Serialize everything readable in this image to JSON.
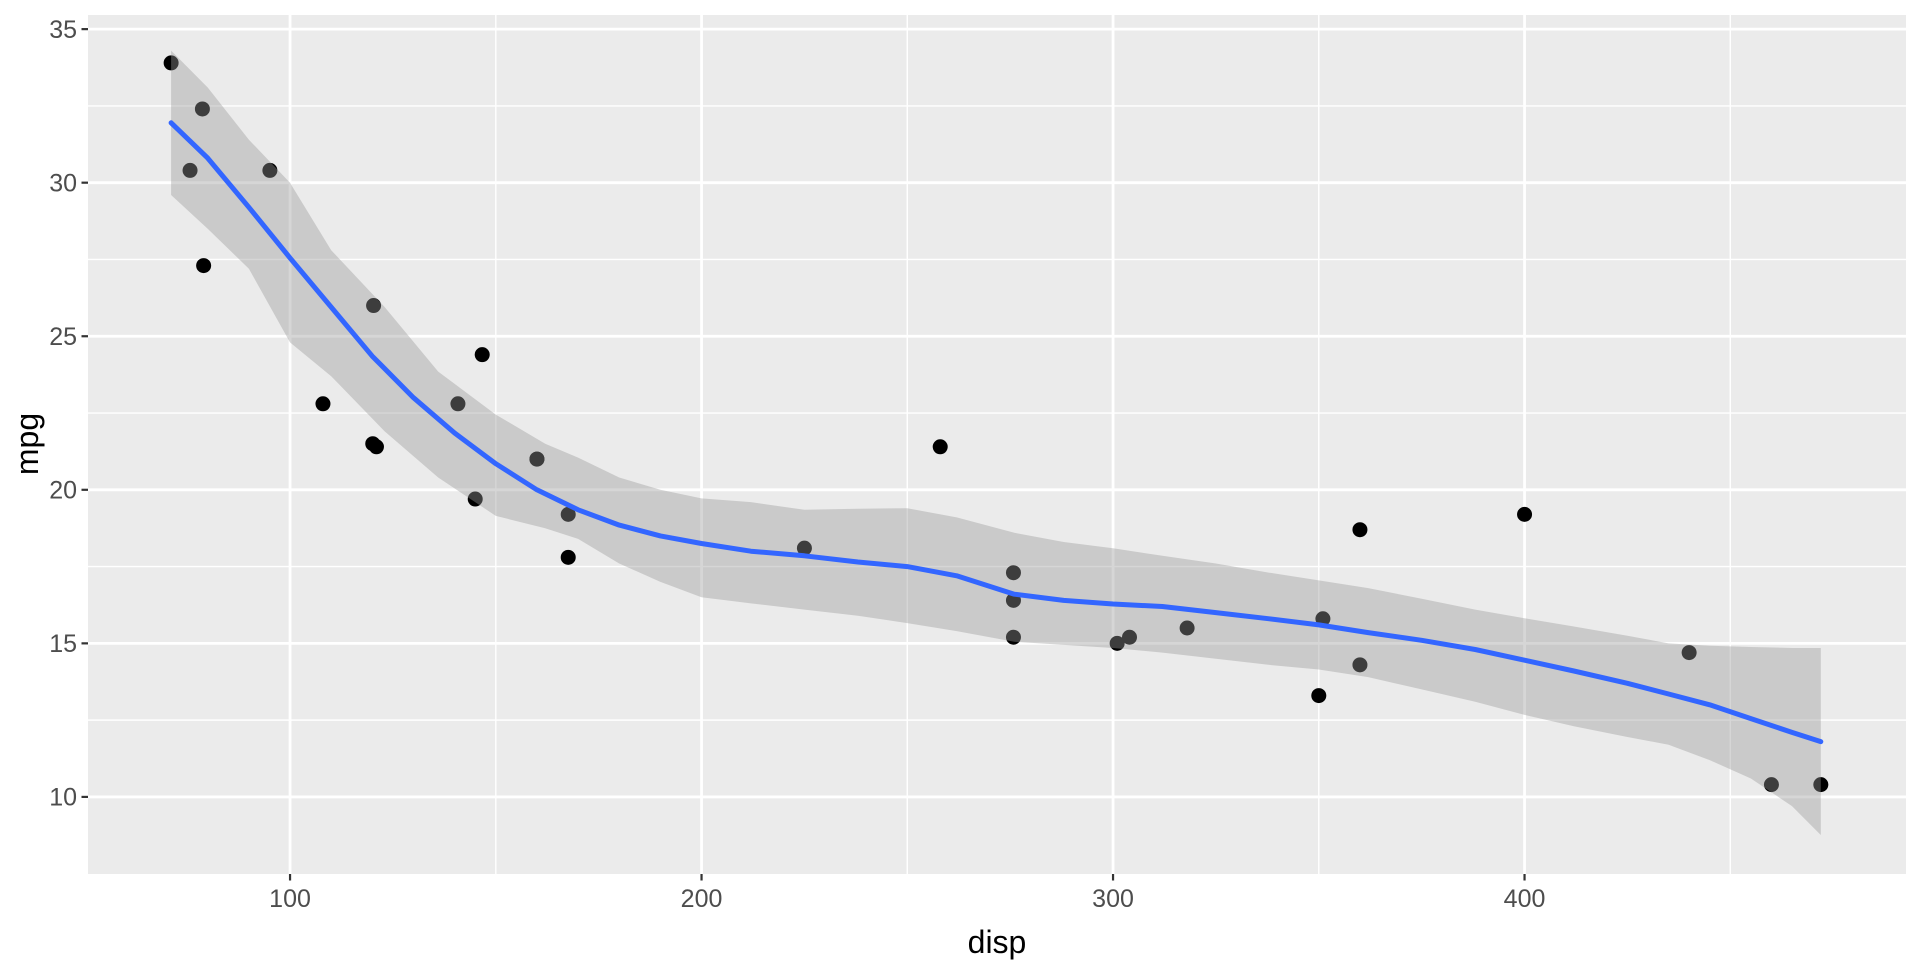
{
  "chart_data": {
    "type": "scatter",
    "title": "",
    "xlabel": "disp",
    "ylabel": "mpg",
    "legend": "none",
    "grid": "on",
    "xlim": [
      50.9,
      492.7
    ],
    "ylim": [
      7.49,
      35.46
    ],
    "x_ticks": [
      100,
      200,
      300,
      400
    ],
    "x_tick_labels": [
      "100",
      "200",
      "300",
      "400"
    ],
    "y_ticks": [
      10,
      15,
      20,
      25,
      30,
      35
    ],
    "y_tick_labels": [
      "10",
      "15",
      "20",
      "25",
      "30",
      "35"
    ],
    "x_minor_ticks": [
      150,
      250,
      350,
      450
    ],
    "y_minor_ticks": [
      12.5,
      17.5,
      22.5,
      27.5,
      32.5
    ],
    "points": [
      [
        160.0,
        21.0
      ],
      [
        160.0,
        21.0
      ],
      [
        108.0,
        22.8
      ],
      [
        258.0,
        21.4
      ],
      [
        360.0,
        18.7
      ],
      [
        225.0,
        18.1
      ],
      [
        360.0,
        14.3
      ],
      [
        146.7,
        24.4
      ],
      [
        140.8,
        22.8
      ],
      [
        167.6,
        19.2
      ],
      [
        167.6,
        17.8
      ],
      [
        275.8,
        16.4
      ],
      [
        275.8,
        17.3
      ],
      [
        275.8,
        15.2
      ],
      [
        472.0,
        10.4
      ],
      [
        460.0,
        10.4
      ],
      [
        440.0,
        14.7
      ],
      [
        78.7,
        32.4
      ],
      [
        75.7,
        30.4
      ],
      [
        71.1,
        33.9
      ],
      [
        120.1,
        21.5
      ],
      [
        318.0,
        15.5
      ],
      [
        304.0,
        15.2
      ],
      [
        350.0,
        13.3
      ],
      [
        400.0,
        19.2
      ],
      [
        79.0,
        27.3
      ],
      [
        120.3,
        26.0
      ],
      [
        95.1,
        30.4
      ],
      [
        121.0,
        21.4
      ],
      [
        351.0,
        15.8
      ],
      [
        145.0,
        19.7
      ],
      [
        301.0,
        15.0
      ]
    ],
    "smooth_line": [
      [
        71.1,
        31.95
      ],
      [
        80,
        30.8
      ],
      [
        90,
        29.2
      ],
      [
        100,
        27.55
      ],
      [
        110,
        25.95
      ],
      [
        120,
        24.35
      ],
      [
        130,
        23.0
      ],
      [
        140,
        21.85
      ],
      [
        150,
        20.85
      ],
      [
        160,
        20.0
      ],
      [
        170,
        19.35
      ],
      [
        180,
        18.85
      ],
      [
        190,
        18.5
      ],
      [
        200,
        18.25
      ],
      [
        212,
        18.0
      ],
      [
        225,
        17.85
      ],
      [
        238,
        17.65
      ],
      [
        250,
        17.5
      ],
      [
        262,
        17.2
      ],
      [
        276,
        16.6
      ],
      [
        288,
        16.4
      ],
      [
        300,
        16.28
      ],
      [
        312,
        16.2
      ],
      [
        325,
        16.0
      ],
      [
        338,
        15.8
      ],
      [
        350,
        15.6
      ],
      [
        362,
        15.35
      ],
      [
        375,
        15.1
      ],
      [
        388,
        14.8
      ],
      [
        400,
        14.45
      ],
      [
        412,
        14.1
      ],
      [
        425,
        13.7
      ],
      [
        435,
        13.35
      ],
      [
        445,
        13.0
      ],
      [
        455,
        12.55
      ],
      [
        465,
        12.1
      ],
      [
        472,
        11.8
      ]
    ],
    "ribbon": [
      [
        71.1,
        29.6,
        34.3
      ],
      [
        80,
        28.5,
        33.1
      ],
      [
        90,
        27.2,
        31.4
      ],
      [
        100,
        24.8,
        30.0
      ],
      [
        110,
        23.7,
        27.8
      ],
      [
        123,
        21.9,
        25.95
      ],
      [
        136,
        20.4,
        23.85
      ],
      [
        150,
        19.15,
        22.45
      ],
      [
        162,
        18.75,
        21.5
      ],
      [
        170,
        18.4,
        21.05
      ],
      [
        180,
        17.6,
        20.4
      ],
      [
        190,
        17.0,
        20.0
      ],
      [
        200,
        16.5,
        19.72
      ],
      [
        212,
        16.3,
        19.6
      ],
      [
        225,
        16.1,
        19.35
      ],
      [
        238,
        15.9,
        19.38
      ],
      [
        250,
        15.66,
        19.4
      ],
      [
        262,
        15.4,
        19.1
      ],
      [
        276,
        15.05,
        18.6
      ],
      [
        288,
        14.95,
        18.3
      ],
      [
        300,
        14.85,
        18.1
      ],
      [
        312,
        14.7,
        17.85
      ],
      [
        325,
        14.5,
        17.6
      ],
      [
        338,
        14.3,
        17.3
      ],
      [
        350,
        14.15,
        17.05
      ],
      [
        362,
        13.9,
        16.8
      ],
      [
        375,
        13.5,
        16.45
      ],
      [
        388,
        13.1,
        16.1
      ],
      [
        400,
        12.67,
        15.82
      ],
      [
        412,
        12.3,
        15.55
      ],
      [
        425,
        11.95,
        15.25
      ],
      [
        435,
        11.7,
        15.0
      ],
      [
        445,
        11.2,
        14.92
      ],
      [
        455,
        10.6,
        14.88
      ],
      [
        465,
        9.7,
        14.85
      ],
      [
        472,
        8.76,
        14.85
      ]
    ]
  },
  "style": {
    "page_background": "#FFFFFF",
    "panel_background": "#EBEBEB",
    "gridline_color": "#FFFFFF",
    "point_color": "#000000",
    "smooth_line_color": "#3366FF",
    "ribbon_color": "rgba(153,153,153,0.4)",
    "tick_mark_color": "#333333",
    "tick_label_color": "#4D4D4D",
    "axis_title_color": "#000000"
  }
}
